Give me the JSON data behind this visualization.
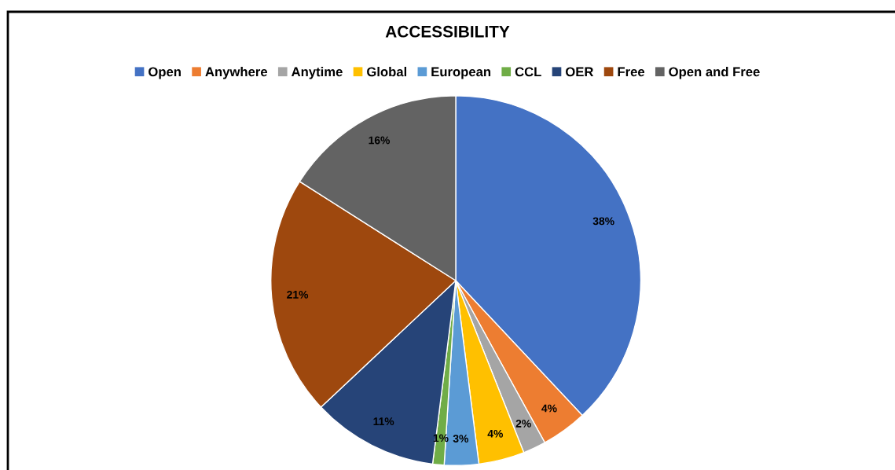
{
  "chart_data": {
    "type": "pie",
    "title": "ACCESSIBILITY",
    "categories": [
      "Open",
      "Anywhere",
      "Anytime",
      "Global",
      "European",
      "CCL",
      "OER",
      "Free",
      "Open and Free"
    ],
    "values": [
      38,
      4,
      2,
      4,
      3,
      1,
      11,
      21,
      16
    ],
    "colors": [
      "#4472c4",
      "#ed7d31",
      "#a5a5a5",
      "#ffc000",
      "#5b9bd5",
      "#70ad47",
      "#264478",
      "#9e480e",
      "#636363"
    ],
    "value_labels": [
      "38%",
      "4%",
      "2%",
      "4%",
      "3%",
      "1%",
      "11%",
      "21%",
      "16%"
    ],
    "legend": "top"
  }
}
